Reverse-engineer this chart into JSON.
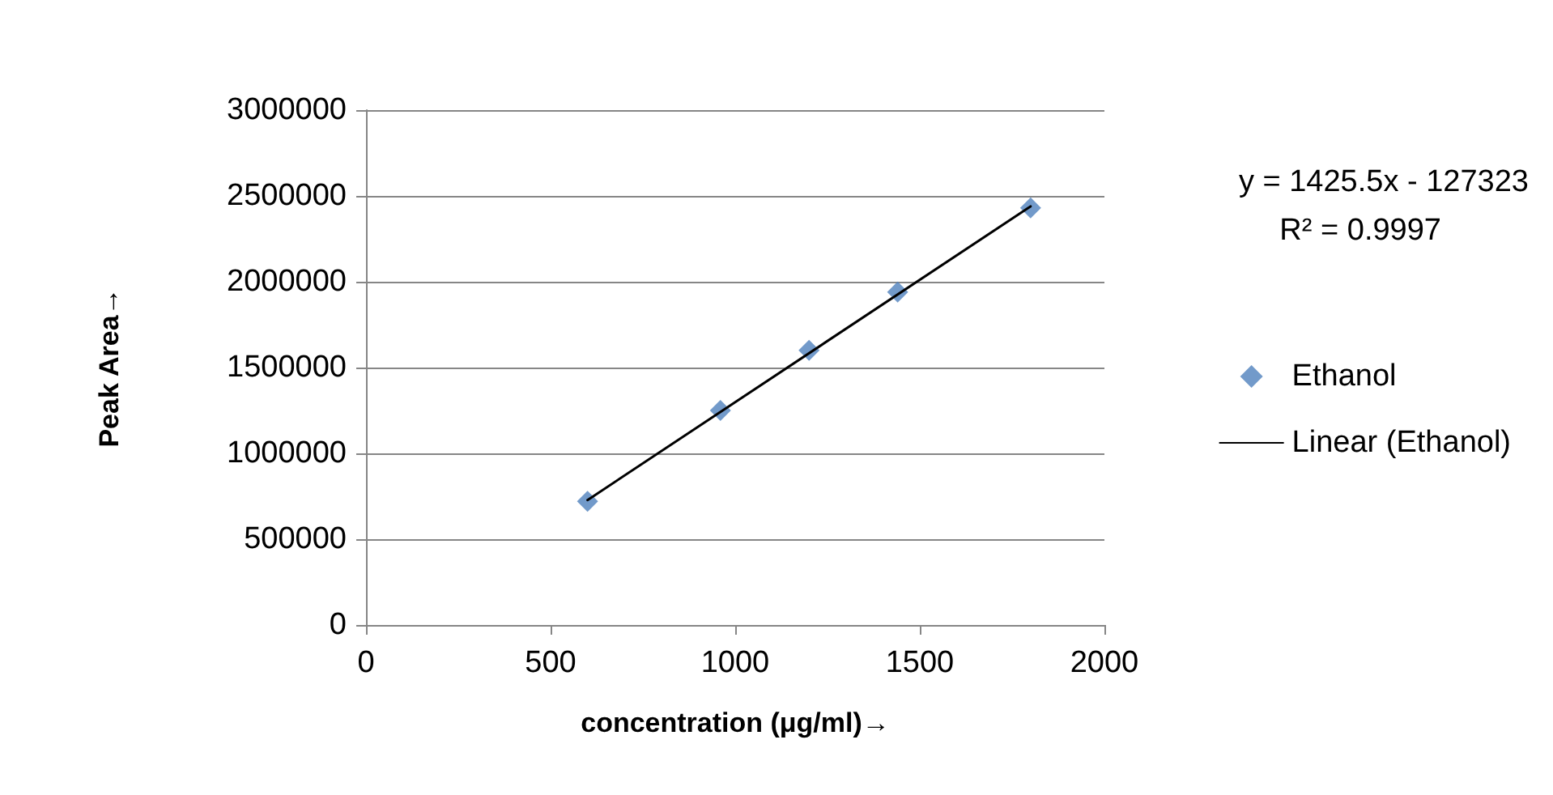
{
  "chart_data": {
    "type": "scatter",
    "xlabel": "concentration (μg/ml)→",
    "ylabel": "Peak Area→",
    "series": [
      {
        "name": "Ethanol",
        "color": "#4f81bd",
        "marker": "diamond",
        "x": [
          600,
          960,
          1200,
          1440,
          1800
        ],
        "values": [
          720000,
          1250000,
          1600000,
          1940000,
          2430000
        ]
      },
      {
        "name": "Linear (Ethanol)",
        "type": "line",
        "color": "#000000",
        "marker": "none",
        "line_style": "solid",
        "x": [
          600,
          1800
        ],
        "values": [
          728000,
          2439000
        ]
      }
    ],
    "xlim": [
      0,
      2000
    ],
    "xticks": [
      0,
      500,
      1000,
      1500,
      2000
    ],
    "ylim": [
      0,
      3000000
    ],
    "yticks": [
      0,
      500000,
      1000000,
      1500000,
      2000000,
      2500000,
      3000000
    ],
    "grid": "y",
    "legend": "right",
    "annotations": [
      "y = 1425.5x - 127323",
      "R² = 0.9997"
    ]
  }
}
